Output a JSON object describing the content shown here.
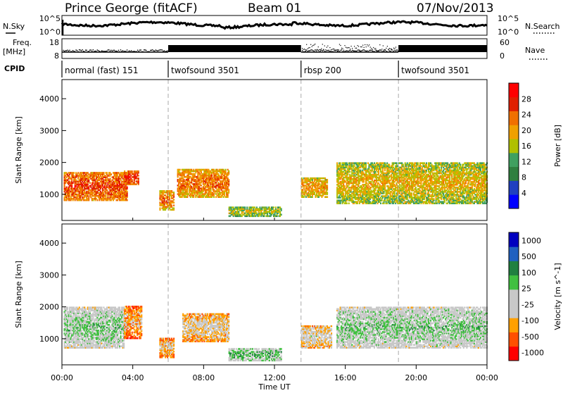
{
  "header": {
    "station": "Prince George (fitACF)",
    "beam": "Beam 01",
    "date": "07/Nov/2013"
  },
  "nsky_panel": {
    "left_label": "N.Sky",
    "left_ticks": [
      "10^5",
      "10^0"
    ],
    "right_label": "N.Search",
    "right_ticks": [
      "10^5",
      "10^0"
    ]
  },
  "freq_panel": {
    "left_label_1": "Freq.",
    "left_label_2": "[MHz]",
    "left_ticks": [
      "18",
      "8"
    ],
    "right_label": "Nave",
    "right_ticks": [
      "60",
      "0"
    ]
  },
  "cpid": {
    "label": "CPID",
    "segments": [
      {
        "label": "normal (fast) 151",
        "start": 0,
        "end": 6.0
      },
      {
        "label": "twofsound 3501",
        "start": 6.0,
        "end": 13.5
      },
      {
        "label": "rbsp 200",
        "start": 13.5,
        "end": 19.0
      },
      {
        "label": "twofsound 3501",
        "start": 19.0,
        "end": 24.0
      }
    ]
  },
  "x_axis": {
    "title": "Time UT",
    "ticks": [
      "00:00",
      "04:00",
      "08:00",
      "12:00",
      "16:00",
      "20:00",
      "00:00"
    ]
  },
  "colors": {
    "power": [
      "#0000ff",
      "#2040c0",
      "#2f7f3f",
      "#40a060",
      "#b0c000",
      "#f0a000",
      "#f07000",
      "#e02000",
      "#ff0000"
    ],
    "velocity": [
      "#ff0000",
      "#ff5000",
      "#ffa000",
      "#c8c8c8",
      "#c8c8c8",
      "#40c040",
      "#208040",
      "#2060c0",
      "#0000c0"
    ]
  },
  "chart_data": [
    {
      "type": "heatmap",
      "title": "",
      "xlabel": "",
      "ylabel": "Slant Range [km]",
      "xlim": [
        0,
        24
      ],
      "ylim": [
        180,
        4600
      ],
      "yticks": [
        "1000",
        "2000",
        "3000",
        "4000"
      ],
      "colorbar": {
        "label": "Power [dB]",
        "ticks": [
          "4",
          "8",
          "12",
          "16",
          "20",
          "24",
          "28"
        ],
        "range": [
          0,
          30
        ]
      },
      "features": [
        {
          "t0": 0.1,
          "t1": 3.7,
          "r0": 800,
          "r1": 1700,
          "value": 22
        },
        {
          "t0": 3.5,
          "t1": 4.3,
          "r0": 1300,
          "r1": 1750,
          "value": 24
        },
        {
          "t0": 5.5,
          "t1": 6.3,
          "r0": 500,
          "r1": 1100,
          "value": 20
        },
        {
          "t0": 6.5,
          "t1": 9.4,
          "r0": 900,
          "r1": 1800,
          "value": 20
        },
        {
          "t0": 9.4,
          "t1": 12.4,
          "r0": 300,
          "r1": 600,
          "value": 14
        },
        {
          "t0": 13.5,
          "t1": 15.0,
          "r0": 900,
          "r1": 1500,
          "value": 18
        },
        {
          "t0": 15.5,
          "t1": 24.0,
          "r0": 700,
          "r1": 2000,
          "value": 16
        }
      ]
    },
    {
      "type": "heatmap",
      "title": "",
      "xlabel": "Time UT",
      "ylabel": "Slant Range [km]",
      "xlim": [
        0,
        24
      ],
      "ylim": [
        180,
        4600
      ],
      "yticks": [
        "1000",
        "2000",
        "3000",
        "4000"
      ],
      "colorbar": {
        "label": "Velocity [m s^-1]",
        "ticks": [
          "1000",
          "500",
          "100",
          "25",
          "-25",
          "-100",
          "-500",
          "-1000"
        ],
        "range": [
          -1200,
          1200
        ]
      },
      "features": [
        {
          "t0": 0.1,
          "t1": 3.5,
          "r0": 700,
          "r1": 2000,
          "value": 0
        },
        {
          "t0": 3.5,
          "t1": 4.5,
          "r0": 1000,
          "r1": 2000,
          "value": -600
        },
        {
          "t0": 5.5,
          "t1": 6.3,
          "r0": 400,
          "r1": 1000,
          "value": -500
        },
        {
          "t0": 6.8,
          "t1": 9.4,
          "r0": 900,
          "r1": 1800,
          "value": -400
        },
        {
          "t0": 9.4,
          "t1": 12.4,
          "r0": 300,
          "r1": 700,
          "value": 150
        },
        {
          "t0": 13.5,
          "t1": 15.2,
          "r0": 700,
          "r1": 1400,
          "value": -300
        },
        {
          "t0": 15.5,
          "t1": 24.0,
          "r0": 700,
          "r1": 2000,
          "value": 0
        }
      ]
    }
  ]
}
